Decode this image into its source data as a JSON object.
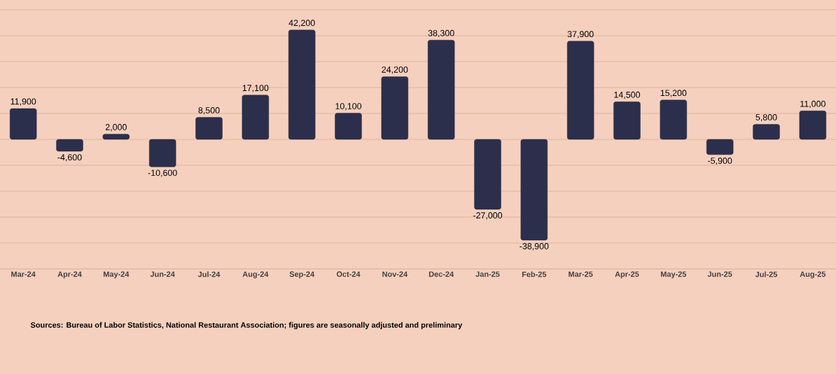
{
  "chart_data": {
    "type": "bar",
    "categories": [
      "Mar-24",
      "Apr-24",
      "May-24",
      "Jun-24",
      "Jul-24",
      "Aug-24",
      "Sep-24",
      "Oct-24",
      "Nov-24",
      "Dec-24",
      "Jan-25",
      "Feb-25",
      "Mar-25",
      "Apr-25",
      "May-25",
      "Jun-25",
      "Jul-25",
      "Aug-25"
    ],
    "values": [
      11900,
      -4600,
      2000,
      -10600,
      8500,
      17100,
      42200,
      10100,
      24200,
      38300,
      -27000,
      -38900,
      37900,
      14500,
      15200,
      -5900,
      5800,
      11000
    ],
    "value_labels": [
      "11,900",
      "-4,600",
      "2,000",
      "-10,600",
      "8,500",
      "17,100",
      "42,200",
      "10,100",
      "24,200",
      "38,300",
      "-27,000",
      "-38,900",
      "37,900",
      "14,500",
      "15,200",
      "-5,900",
      "5,800",
      "11,000"
    ],
    "color": "#2b2f4c",
    "ylim": [
      -50000,
      50000
    ],
    "yticks": [
      {
        "value": -40000,
        "label": null
      },
      {
        "value": -30000,
        "label": null
      },
      {
        "value": -20000,
        "label": null
      },
      {
        "value": -10000,
        "label": null
      },
      {
        "value": 0,
        "label": null
      },
      {
        "value": 10000,
        "label": null
      },
      {
        "value": 20000,
        "label": null
      },
      {
        "value": 30000,
        "label": null
      },
      {
        "value": 40000,
        "label": null
      },
      {
        "value": 50000,
        "label": null
      }
    ],
    "grid": "y",
    "tick_labels": "x",
    "annotations": [
      "Sources: Bureau of Labor Statistics, National Restaurant Association; figures are seasonally adjusted and preliminary"
    ]
  }
}
